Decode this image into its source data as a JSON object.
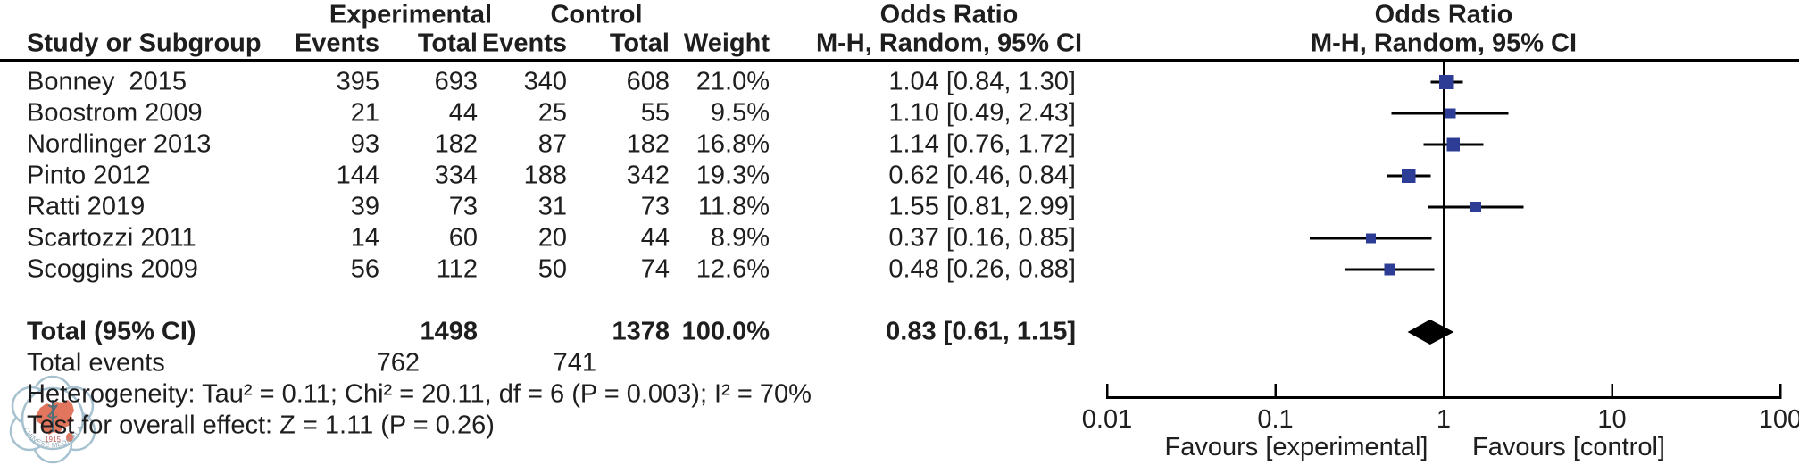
{
  "header": {
    "experimental": "Experimental",
    "control": "Control",
    "odds_ratio": "Odds Ratio",
    "method_line": "M-H, Random, 95% CI",
    "study": "Study or Subgroup",
    "events": "Events",
    "total": "Total",
    "weight": "Weight"
  },
  "totals": {
    "label": "Total (95% CI)",
    "exp_total": "1498",
    "ctrl_total": "1378",
    "weight": "100.0%",
    "or_text": "0.83 [0.61, 1.15]",
    "events_label": "Total events",
    "exp_events": "762",
    "ctrl_events": "741"
  },
  "footer": {
    "heterogeneity": "Heterogeneity: Tau² = 0.11; Chi² = 20.11, df = 6 (P = 0.003); I² = 70%",
    "overall_effect": "Test for overall effect: Z = 1.11 (P = 0.26)"
  },
  "axis": {
    "tick_labels": [
      "0.01",
      "0.1",
      "1",
      "10",
      "100"
    ],
    "favours_left": "Favours [experimental]",
    "favours_right": "Favours [control]"
  },
  "watermark": {
    "year": "1915",
    "ring_text": "CHINESE MEDICAL ASSOCIATION"
  },
  "colors": {
    "square_blue": "#2d3d96",
    "line_black": "#000000",
    "text": "#1e1e1e",
    "watermark_blue": "#9fbccb",
    "watermark_red": "#e06a50"
  },
  "chart_data": {
    "type": "scatter",
    "subtype": "forest_plot",
    "effect_measure": "Odds Ratio",
    "model": "M-H, Random, 95% CI",
    "x_scale": "log10",
    "x_ticks": [
      0.01,
      0.1,
      1,
      10,
      100
    ],
    "xlim": [
      0.01,
      100
    ],
    "no_effect_line": 1,
    "favours": [
      "Favours [experimental]",
      "Favours [control]"
    ],
    "studies": [
      {
        "name": "Bonney  2015",
        "exp_events": "395",
        "exp_total": "693",
        "ctrl_events": "340",
        "ctrl_total": "608",
        "weight": "21.0%",
        "weight_pct": 21.0,
        "or_text": "1.04 [0.84, 1.30]",
        "or": 1.04,
        "ci_low": 0.84,
        "ci_high": 1.3
      },
      {
        "name": "Boostrom 2009",
        "exp_events": "21",
        "exp_total": "44",
        "ctrl_events": "25",
        "ctrl_total": "55",
        "weight": "9.5%",
        "weight_pct": 9.5,
        "or_text": "1.10 [0.49, 2.43]",
        "or": 1.1,
        "ci_low": 0.49,
        "ci_high": 2.43
      },
      {
        "name": "Nordlinger 2013",
        "exp_events": "93",
        "exp_total": "182",
        "ctrl_events": "87",
        "ctrl_total": "182",
        "weight": "16.8%",
        "weight_pct": 16.8,
        "or_text": "1.14 [0.76, 1.72]",
        "or": 1.14,
        "ci_low": 0.76,
        "ci_high": 1.72
      },
      {
        "name": "Pinto 2012",
        "exp_events": "144",
        "exp_total": "334",
        "ctrl_events": "188",
        "ctrl_total": "342",
        "weight": "19.3%",
        "weight_pct": 19.3,
        "or_text": "0.62 [0.46, 0.84]",
        "or": 0.62,
        "ci_low": 0.46,
        "ci_high": 0.84
      },
      {
        "name": "Ratti 2019",
        "exp_events": "39",
        "exp_total": "73",
        "ctrl_events": "31",
        "ctrl_total": "73",
        "weight": "11.8%",
        "weight_pct": 11.8,
        "or_text": "1.55 [0.81, 2.99]",
        "or": 1.55,
        "ci_low": 0.81,
        "ci_high": 2.99
      },
      {
        "name": "Scartozzi 2011",
        "exp_events": "14",
        "exp_total": "60",
        "ctrl_events": "20",
        "ctrl_total": "44",
        "weight": "8.9%",
        "weight_pct": 8.9,
        "or_text": "0.37 [0.16, 0.85]",
        "or": 0.37,
        "ci_low": 0.16,
        "ci_high": 0.85
      },
      {
        "name": "Scoggins 2009",
        "exp_events": "56",
        "exp_total": "112",
        "ctrl_events": "50",
        "ctrl_total": "74",
        "weight": "12.6%",
        "weight_pct": 12.6,
        "or_text": "0.48 [0.26, 0.88]",
        "or": 0.48,
        "ci_low": 0.26,
        "ci_high": 0.88
      }
    ],
    "total": {
      "or": 0.83,
      "ci_low": 0.61,
      "ci_high": 1.15,
      "exp_total": 1498,
      "ctrl_total": 1378,
      "exp_events": 762,
      "ctrl_events": 741,
      "weight_pct": 100.0
    },
    "heterogeneity": {
      "tau2": 0.11,
      "chi2": 20.11,
      "df": 6,
      "p": 0.003,
      "i2_pct": 70
    },
    "overall_effect": {
      "z": 1.11,
      "p": 0.26
    }
  }
}
